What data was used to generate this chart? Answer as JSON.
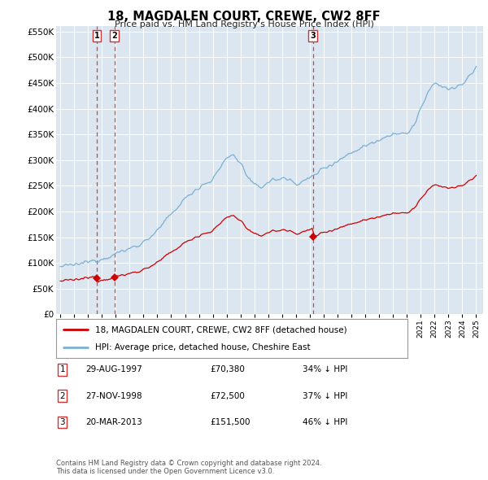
{
  "title": "18, MAGDALEN COURT, CREWE, CW2 8FF",
  "subtitle": "Price paid vs. HM Land Registry's House Price Index (HPI)",
  "legend_label_red": "18, MAGDALEN COURT, CREWE, CW2 8FF (detached house)",
  "legend_label_blue": "HPI: Average price, detached house, Cheshire East",
  "footer": "Contains HM Land Registry data © Crown copyright and database right 2024.\nThis data is licensed under the Open Government Licence v3.0.",
  "sales": [
    {
      "label": "1",
      "date_str": "29-AUG-1997",
      "date_x": 1997.65,
      "price": 70380
    },
    {
      "label": "2",
      "date_str": "27-NOV-1998",
      "date_x": 1998.9,
      "price": 72500
    },
    {
      "label": "3",
      "date_str": "20-MAR-2013",
      "date_x": 2013.21,
      "price": 151500
    }
  ],
  "table_rows": [
    {
      "num": "1",
      "date": "29-AUG-1997",
      "price": "£70,380",
      "pct": "34% ↓ HPI"
    },
    {
      "num": "2",
      "date": "27-NOV-1998",
      "price": "£72,500",
      "pct": "37% ↓ HPI"
    },
    {
      "num": "3",
      "date": "20-MAR-2013",
      "price": "£151,500",
      "pct": "46% ↓ HPI"
    }
  ],
  "red_color": "#cc0000",
  "blue_color": "#7ab0d4",
  "dashed_red": "#cc3333",
  "bg_plot": "#dce6f0",
  "bg_figure": "#ffffff",
  "ylim": [
    0,
    560000
  ],
  "xlim": [
    1994.7,
    2025.5
  ],
  "yticks": [
    0,
    50000,
    100000,
    150000,
    200000,
    250000,
    300000,
    350000,
    400000,
    450000,
    500000,
    550000
  ],
  "xticks": [
    1995,
    1996,
    1997,
    1998,
    1999,
    2000,
    2001,
    2002,
    2003,
    2004,
    2005,
    2006,
    2007,
    2008,
    2009,
    2010,
    2011,
    2012,
    2013,
    2014,
    2015,
    2016,
    2017,
    2018,
    2019,
    2020,
    2021,
    2022,
    2023,
    2024,
    2025
  ]
}
